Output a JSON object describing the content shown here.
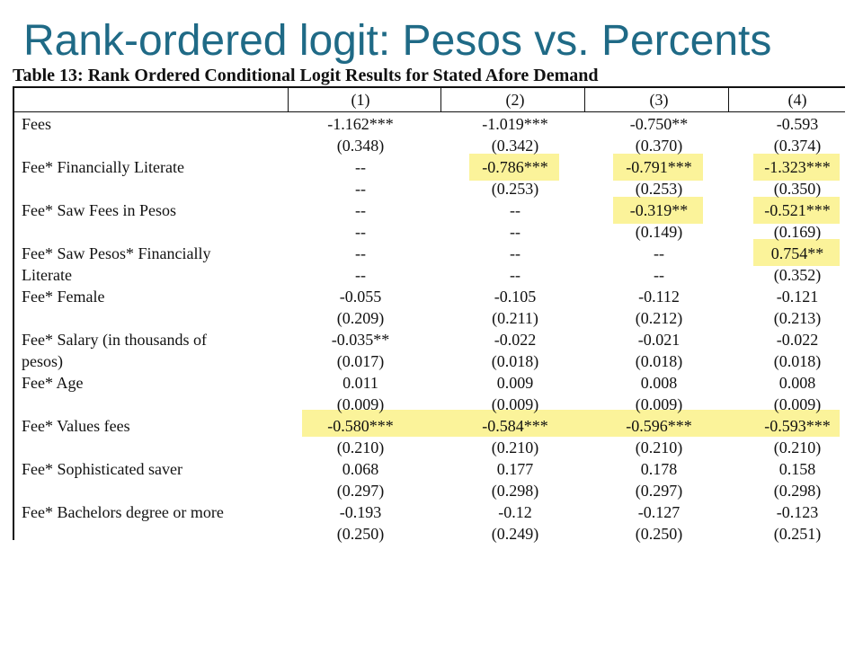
{
  "slide": {
    "title": "Rank-ordered logit: Pesos vs. Percents"
  },
  "table": {
    "title": "Table 13: Rank Ordered Conditional Logit Results for Stated Afore Demand",
    "columns": [
      "(1)",
      "(2)",
      "(3)",
      "(4)"
    ],
    "rows": [
      {
        "label": "Fees",
        "cells": [
          "-1.162***",
          "-1.019***",
          "-0.750**",
          "-0.593"
        ]
      },
      {
        "label": "",
        "cells": [
          "(0.348)",
          "(0.342)",
          "(0.370)",
          "(0.374)"
        ]
      },
      {
        "label": "Fee* Financially Literate",
        "cells": [
          "--",
          "-0.786***",
          "-0.791***",
          "-1.323***"
        ]
      },
      {
        "label": "",
        "cells": [
          "--",
          "(0.253)",
          "(0.253)",
          "(0.350)"
        ]
      },
      {
        "label": "Fee* Saw Fees in Pesos",
        "cells": [
          "--",
          "--",
          "-0.319**",
          "-0.521***"
        ]
      },
      {
        "label": "",
        "cells": [
          "--",
          "--",
          "(0.149)",
          "(0.169)"
        ]
      },
      {
        "label": "Fee* Saw Pesos* Financially",
        "cells": [
          "--",
          "--",
          "--",
          "0.754**"
        ]
      },
      {
        "label": "Literate",
        "cells": [
          "--",
          "--",
          "--",
          "(0.352)"
        ]
      },
      {
        "label": "Fee* Female",
        "cells": [
          "-0.055",
          "-0.105",
          "-0.112",
          "-0.121"
        ]
      },
      {
        "label": "",
        "cells": [
          "(0.209)",
          "(0.211)",
          "(0.212)",
          "(0.213)"
        ]
      },
      {
        "label": "Fee* Salary (in thousands of",
        "cells": [
          "-0.035**",
          "-0.022",
          "-0.021",
          "-0.022"
        ]
      },
      {
        "label": "pesos)",
        "cells": [
          "(0.017)",
          "(0.018)",
          "(0.018)",
          "(0.018)"
        ]
      },
      {
        "label": "Fee* Age",
        "cells": [
          "0.011",
          "0.009",
          "0.008",
          "0.008"
        ]
      },
      {
        "label": "",
        "cells": [
          "(0.009)",
          "(0.009)",
          "(0.009)",
          "(0.009)"
        ]
      },
      {
        "label": "Fee* Values fees",
        "cells": [
          "-0.580***",
          "-0.584***",
          "-0.596***",
          "-0.593***"
        ]
      },
      {
        "label": "",
        "cells": [
          "(0.210)",
          "(0.210)",
          "(0.210)",
          "(0.210)"
        ]
      },
      {
        "label": "Fee* Sophisticated saver",
        "cells": [
          "0.068",
          "0.177",
          "0.178",
          "0.158"
        ]
      },
      {
        "label": "",
        "cells": [
          "(0.297)",
          "(0.298)",
          "(0.297)",
          "(0.298)"
        ]
      },
      {
        "label": "Fee* Bachelors degree or more",
        "cells": [
          "-0.193",
          "-0.12",
          "-0.127",
          "-0.123"
        ]
      },
      {
        "label": "",
        "cells": [
          "(0.250)",
          "(0.249)",
          "(0.250)",
          "(0.251)"
        ]
      }
    ]
  },
  "colors": {
    "title": "#1f6a86",
    "highlight": "#fbf39a",
    "text": "#111111"
  }
}
